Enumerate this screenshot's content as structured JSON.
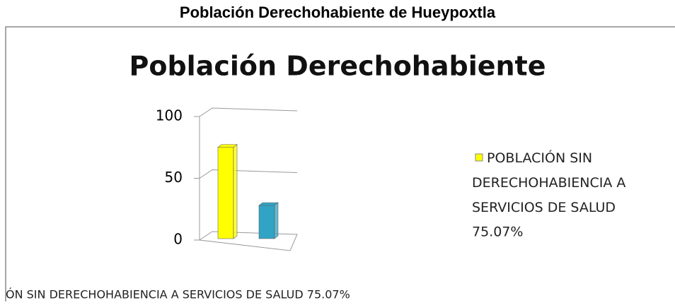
{
  "page_title": "Población Derechohabiente de Hueypoxtla",
  "chart_data": {
    "type": "bar3d",
    "title": "Población Derechohabiente",
    "categories": [
      null,
      null
    ],
    "series": [
      {
        "name": "POBLACIÓN SIN DERECHOHABIENCIA A SERVICIOS DE SALUD",
        "colors": [
          "#ffff00",
          "#31a3c4"
        ],
        "values": [
          75.07,
          28
        ],
        "value_labels": [
          "75.07%",
          null
        ]
      }
    ],
    "ylim": [
      0,
      100
    ],
    "yticks": [
      0,
      50,
      100
    ],
    "grid": true,
    "legend": "right"
  },
  "footer_text": "ÓN SIN DERECHOHABIENCIA A SERVICIOS DE SALUD 75.07%"
}
